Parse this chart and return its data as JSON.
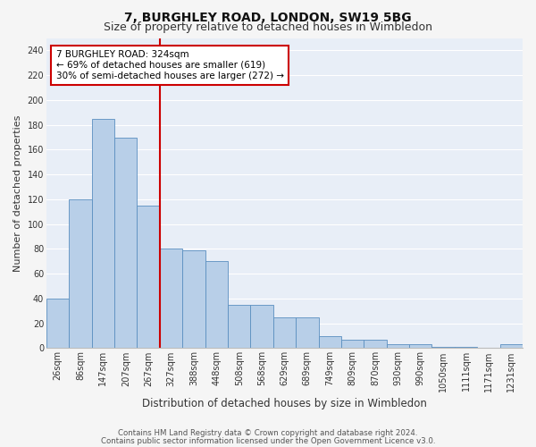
{
  "title": "7, BURGHLEY ROAD, LONDON, SW19 5BG",
  "subtitle": "Size of property relative to detached houses in Wimbledon",
  "xlabel": "Distribution of detached houses by size in Wimbledon",
  "ylabel": "Number of detached properties",
  "categories": [
    "26sqm",
    "86sqm",
    "147sqm",
    "207sqm",
    "267sqm",
    "327sqm",
    "388sqm",
    "448sqm",
    "508sqm",
    "568sqm",
    "629sqm",
    "689sqm",
    "749sqm",
    "809sqm",
    "870sqm",
    "930sqm",
    "990sqm",
    "1050sqm",
    "1111sqm",
    "1171sqm",
    "1231sqm"
  ],
  "values": [
    40,
    120,
    185,
    170,
    115,
    80,
    79,
    70,
    35,
    35,
    25,
    25,
    10,
    7,
    7,
    3,
    3,
    1,
    1,
    0,
    3
  ],
  "bar_color": "#b8cfe8",
  "bar_edge_color": "#5a8fc0",
  "annotation_text": "7 BURGHLEY ROAD: 324sqm\n← 69% of detached houses are smaller (619)\n30% of semi-detached houses are larger (272) →",
  "annotation_box_color": "#ffffff",
  "annotation_box_edge": "#cc0000",
  "annotation_text_color": "#000000",
  "vline_color": "#cc0000",
  "footer1": "Contains HM Land Registry data © Crown copyright and database right 2024.",
  "footer2": "Contains public sector information licensed under the Open Government Licence v3.0.",
  "ylim": [
    0,
    250
  ],
  "yticks": [
    0,
    20,
    40,
    60,
    80,
    100,
    120,
    140,
    160,
    180,
    200,
    220,
    240
  ],
  "background_color": "#e8eef7",
  "grid_color": "#ffffff",
  "fig_bg_color": "#f5f5f5",
  "title_fontsize": 10,
  "subtitle_fontsize": 9,
  "tick_fontsize": 7,
  "ylabel_fontsize": 8,
  "xlabel_fontsize": 8.5,
  "annotation_fontsize": 7.5
}
